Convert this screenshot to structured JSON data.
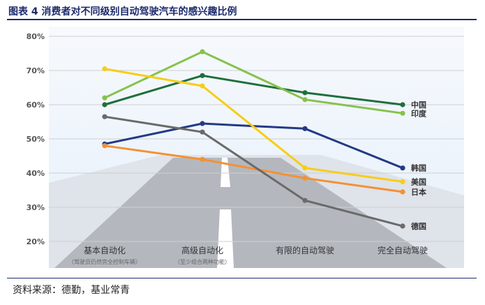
{
  "figure_title": "图表 4 消费者对不同级别自动驾驶汽车的感兴趣比例",
  "source": "资料来源：德勤，基业常青",
  "colors": {
    "title": "#1c2a6b",
    "axis_text": "#555555",
    "grid": "#cfcfcf",
    "sky_top": "#f6f9fd",
    "sky_bottom": "#e6f0fa",
    "road": "#b4b8be",
    "road_edge": "#dfe3ea"
  },
  "chart_data": {
    "type": "line",
    "title": "",
    "xlabel": "",
    "ylabel": "",
    "categories": [
      "基本自动化",
      "高级自动化",
      "有限的自动驾驶",
      "完全自动驾驶"
    ],
    "category_sublabels": [
      "（驾驶员仍然完全控制车辆）",
      "（至少组合两种功能）",
      "",
      ""
    ],
    "y_ticks": [
      "20%",
      "30%",
      "40%",
      "50%",
      "60%",
      "70%",
      "80%"
    ],
    "ylim": [
      20,
      80
    ],
    "grid": true,
    "series": [
      {
        "name": "中国",
        "color": "#1e6f3c",
        "values": [
          60,
          68.5,
          63.5,
          60
        ]
      },
      {
        "name": "印度",
        "color": "#86c24d",
        "values": [
          62,
          75.5,
          61.5,
          57.5
        ]
      },
      {
        "name": "韩国",
        "color": "#233a84",
        "values": [
          48.5,
          54.5,
          53,
          41.5
        ]
      },
      {
        "name": "美国",
        "color": "#f7cd17",
        "values": [
          70.5,
          65.5,
          41.5,
          37.5
        ]
      },
      {
        "name": "日本",
        "color": "#f39134",
        "values": [
          48,
          44,
          38.5,
          34.5
        ]
      },
      {
        "name": "德国",
        "color": "#6a6a6a",
        "values": [
          56.5,
          52,
          32,
          24.5
        ]
      }
    ]
  }
}
